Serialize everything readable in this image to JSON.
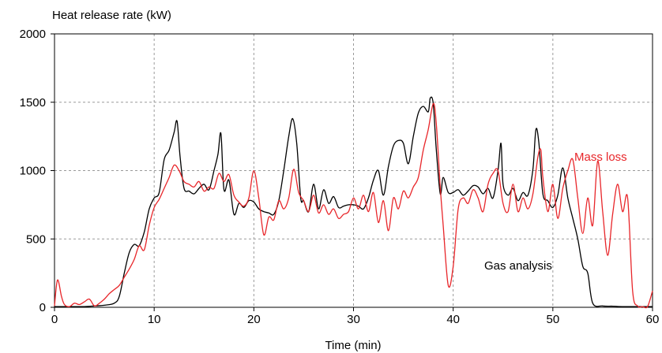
{
  "chart_data": {
    "type": "line",
    "title": "",
    "ylabel": "Heat release rate (kW)",
    "xlabel": "Time (min)",
    "xlim": [
      0,
      60
    ],
    "ylim": [
      0,
      2000
    ],
    "xticks": [
      0,
      10,
      20,
      30,
      40,
      50,
      60
    ],
    "yticks": [
      0,
      500,
      1000,
      1500,
      2000
    ],
    "grid": "dashed vertical and horizontal gridlines",
    "annotations": [
      {
        "text": "Mass loss",
        "color": "#e8262a",
        "series": 1
      },
      {
        "text": "Gas analysis",
        "color": "#000000",
        "series": 0
      }
    ],
    "series": [
      {
        "name": "Gas analysis",
        "color": "#000000",
        "points": [
          [
            0,
            5
          ],
          [
            1,
            5
          ],
          [
            2,
            5
          ],
          [
            3,
            5
          ],
          [
            4,
            10
          ],
          [
            5,
            15
          ],
          [
            6,
            30
          ],
          [
            6.5,
            80
          ],
          [
            7,
            250
          ],
          [
            7.5,
            400
          ],
          [
            8,
            460
          ],
          [
            8.5,
            450
          ],
          [
            9,
            550
          ],
          [
            9.5,
            720
          ],
          [
            10,
            800
          ],
          [
            10.5,
            840
          ],
          [
            11,
            1080
          ],
          [
            11.5,
            1150
          ],
          [
            12,
            1280
          ],
          [
            12.3,
            1360
          ],
          [
            12.6,
            1100
          ],
          [
            13,
            870
          ],
          [
            13.5,
            850
          ],
          [
            14,
            830
          ],
          [
            14.5,
            870
          ],
          [
            15,
            900
          ],
          [
            15.5,
            860
          ],
          [
            16,
            1000
          ],
          [
            16.4,
            1120
          ],
          [
            16.7,
            1270
          ],
          [
            17,
            860
          ],
          [
            17.5,
            930
          ],
          [
            18,
            680
          ],
          [
            18.5,
            760
          ],
          [
            19,
            730
          ],
          [
            19.5,
            780
          ],
          [
            20,
            770
          ],
          [
            20.5,
            720
          ],
          [
            21,
            700
          ],
          [
            21.5,
            690
          ],
          [
            22,
            680
          ],
          [
            22.5,
            780
          ],
          [
            23,
            1000
          ],
          [
            23.5,
            1250
          ],
          [
            23.9,
            1380
          ],
          [
            24.3,
            1200
          ],
          [
            24.7,
            800
          ],
          [
            25,
            780
          ],
          [
            25.5,
            700
          ],
          [
            26,
            900
          ],
          [
            26.5,
            720
          ],
          [
            27,
            860
          ],
          [
            27.5,
            760
          ],
          [
            28,
            810
          ],
          [
            28.5,
            730
          ],
          [
            29,
            740
          ],
          [
            29.5,
            750
          ],
          [
            30,
            750
          ],
          [
            30.5,
            740
          ],
          [
            31,
            720
          ],
          [
            31.5,
            800
          ],
          [
            32,
            930
          ],
          [
            32.5,
            1000
          ],
          [
            33,
            820
          ],
          [
            33.5,
            1030
          ],
          [
            34,
            1180
          ],
          [
            34.5,
            1220
          ],
          [
            35,
            1200
          ],
          [
            35.5,
            1050
          ],
          [
            36,
            1250
          ],
          [
            36.5,
            1420
          ],
          [
            37,
            1470
          ],
          [
            37.5,
            1430
          ],
          [
            37.7,
            1530
          ],
          [
            38,
            1490
          ],
          [
            38.3,
            1160
          ],
          [
            38.7,
            830
          ],
          [
            39,
            950
          ],
          [
            39.5,
            840
          ],
          [
            40,
            840
          ],
          [
            40.5,
            860
          ],
          [
            41,
            820
          ],
          [
            41.5,
            850
          ],
          [
            42,
            890
          ],
          [
            42.5,
            880
          ],
          [
            43,
            830
          ],
          [
            43.5,
            870
          ],
          [
            44,
            800
          ],
          [
            44.5,
            1000
          ],
          [
            44.8,
            1200
          ],
          [
            45,
            900
          ],
          [
            45.5,
            820
          ],
          [
            46,
            870
          ],
          [
            46.5,
            780
          ],
          [
            47,
            840
          ],
          [
            47.5,
            820
          ],
          [
            48,
            1010
          ],
          [
            48.3,
            1300
          ],
          [
            48.6,
            1200
          ],
          [
            49,
            830
          ],
          [
            49.5,
            780
          ],
          [
            50,
            730
          ],
          [
            50.5,
            820
          ],
          [
            51,
            1020
          ],
          [
            51.5,
            800
          ],
          [
            52,
            650
          ],
          [
            52.5,
            500
          ],
          [
            53,
            300
          ],
          [
            53.5,
            250
          ],
          [
            54,
            30
          ],
          [
            55,
            10
          ],
          [
            56,
            8
          ],
          [
            57,
            5
          ],
          [
            58,
            5
          ],
          [
            59,
            5
          ],
          [
            60,
            5
          ]
        ]
      },
      {
        "name": "Mass loss",
        "color": "#e8262a",
        "points": [
          [
            0,
            10
          ],
          [
            0.3,
            200
          ],
          [
            0.7,
            80
          ],
          [
            1,
            20
          ],
          [
            1.5,
            5
          ],
          [
            2,
            30
          ],
          [
            2.5,
            20
          ],
          [
            3,
            40
          ],
          [
            3.5,
            60
          ],
          [
            4,
            10
          ],
          [
            4.5,
            30
          ],
          [
            5,
            60
          ],
          [
            5.5,
            100
          ],
          [
            6,
            130
          ],
          [
            6.5,
            160
          ],
          [
            7,
            220
          ],
          [
            7.5,
            280
          ],
          [
            8,
            350
          ],
          [
            8.5,
            450
          ],
          [
            9,
            420
          ],
          [
            9.5,
            600
          ],
          [
            10,
            730
          ],
          [
            10.5,
            790
          ],
          [
            11,
            870
          ],
          [
            11.5,
            950
          ],
          [
            12,
            1040
          ],
          [
            12.5,
            1000
          ],
          [
            13,
            920
          ],
          [
            13.5,
            900
          ],
          [
            14,
            880
          ],
          [
            14.5,
            920
          ],
          [
            15,
            850
          ],
          [
            15.5,
            880
          ],
          [
            16,
            870
          ],
          [
            16.5,
            980
          ],
          [
            17,
            920
          ],
          [
            17.5,
            970
          ],
          [
            18,
            820
          ],
          [
            18.5,
            770
          ],
          [
            19,
            740
          ],
          [
            19.5,
            800
          ],
          [
            20,
            1000
          ],
          [
            20.5,
            800
          ],
          [
            21,
            530
          ],
          [
            21.5,
            660
          ],
          [
            22,
            640
          ],
          [
            22.5,
            780
          ],
          [
            23,
            720
          ],
          [
            23.5,
            800
          ],
          [
            24,
            1010
          ],
          [
            24.5,
            840
          ],
          [
            25,
            780
          ],
          [
            25.5,
            700
          ],
          [
            26,
            820
          ],
          [
            26.5,
            690
          ],
          [
            27,
            750
          ],
          [
            27.5,
            680
          ],
          [
            28,
            720
          ],
          [
            28.5,
            650
          ],
          [
            29,
            680
          ],
          [
            29.5,
            700
          ],
          [
            30,
            800
          ],
          [
            30.5,
            720
          ],
          [
            31,
            820
          ],
          [
            31.5,
            700
          ],
          [
            32,
            840
          ],
          [
            32.5,
            620
          ],
          [
            33,
            780
          ],
          [
            33.5,
            560
          ],
          [
            34,
            800
          ],
          [
            34.5,
            720
          ],
          [
            35,
            850
          ],
          [
            35.5,
            800
          ],
          [
            36,
            880
          ],
          [
            36.5,
            950
          ],
          [
            37,
            1150
          ],
          [
            37.5,
            1300
          ],
          [
            38,
            1490
          ],
          [
            38.3,
            1350
          ],
          [
            38.7,
            880
          ],
          [
            39,
            600
          ],
          [
            39.5,
            160
          ],
          [
            40,
            300
          ],
          [
            40.5,
            720
          ],
          [
            41,
            800
          ],
          [
            41.5,
            760
          ],
          [
            42,
            860
          ],
          [
            42.5,
            800
          ],
          [
            43,
            700
          ],
          [
            43.5,
            900
          ],
          [
            44,
            980
          ],
          [
            44.5,
            1000
          ],
          [
            45,
            760
          ],
          [
            45.5,
            700
          ],
          [
            46,
            900
          ],
          [
            46.5,
            700
          ],
          [
            47,
            800
          ],
          [
            47.5,
            720
          ],
          [
            48,
            830
          ],
          [
            48.5,
            1100
          ],
          [
            48.8,
            1150
          ],
          [
            49,
            950
          ],
          [
            49.5,
            700
          ],
          [
            50,
            900
          ],
          [
            50.5,
            650
          ],
          [
            51,
            870
          ],
          [
            51.5,
            1000
          ],
          [
            52,
            1080
          ],
          [
            52.5,
            800
          ],
          [
            53,
            540
          ],
          [
            53.5,
            800
          ],
          [
            54,
            600
          ],
          [
            54.5,
            1070
          ],
          [
            55,
            700
          ],
          [
            55.5,
            380
          ],
          [
            56,
            680
          ],
          [
            56.5,
            900
          ],
          [
            57,
            700
          ],
          [
            57.5,
            800
          ],
          [
            58,
            120
          ],
          [
            58.5,
            10
          ],
          [
            59,
            5
          ],
          [
            59.5,
            5
          ],
          [
            60,
            120
          ]
        ]
      }
    ]
  }
}
